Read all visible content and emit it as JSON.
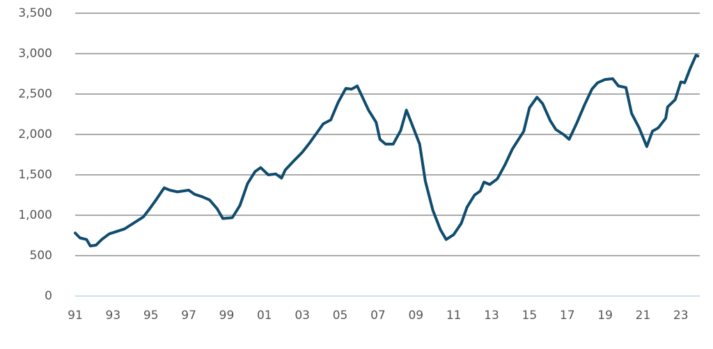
{
  "chart_data": {
    "type": "line",
    "color": "#0f4c6e",
    "grid": true,
    "x": [
      1991.0,
      1991.25,
      1991.6,
      1991.8,
      1992.1,
      1992.4,
      1992.8,
      1993.2,
      1993.6,
      1994.2,
      1994.6,
      1994.9,
      1995.3,
      1995.7,
      1996.0,
      1996.4,
      1997.0,
      1997.3,
      1997.7,
      1998.1,
      1998.5,
      1998.8,
      1999.3,
      1999.7,
      2000.1,
      2000.5,
      2000.8,
      2001.2,
      2001.6,
      2001.9,
      2002.1,
      2002.5,
      2003.0,
      2003.4,
      2003.8,
      2004.1,
      2004.5,
      2004.9,
      2005.3,
      2005.6,
      2005.9,
      2006.2,
      2006.5,
      2006.9,
      2007.1,
      2007.4,
      2007.8,
      2008.2,
      2008.5,
      2008.9,
      2009.2,
      2009.5,
      2009.9,
      2010.3,
      2010.6,
      2011.0,
      2011.4,
      2011.7,
      2012.1,
      2012.4,
      2012.6,
      2012.9,
      2013.3,
      2013.7,
      2014.1,
      2014.4,
      2014.7,
      2015.0,
      2015.4,
      2015.7,
      2016.1,
      2016.4,
      2016.8,
      2017.1,
      2017.5,
      2017.9,
      2018.3,
      2018.6,
      2019.0,
      2019.4,
      2019.7,
      2020.1,
      2020.4,
      2020.8,
      2021.2,
      2021.5,
      2021.8,
      2022.2,
      2022.3,
      2022.7,
      2023.0,
      2023.2,
      2023.5,
      2023.8,
      2023.9
    ],
    "values": [
      780,
      720,
      700,
      620,
      630,
      700,
      770,
      800,
      830,
      920,
      980,
      1070,
      1200,
      1340,
      1310,
      1290,
      1310,
      1260,
      1230,
      1190,
      1080,
      960,
      970,
      1120,
      1390,
      1540,
      1590,
      1500,
      1510,
      1460,
      1560,
      1660,
      1780,
      1900,
      2030,
      2130,
      2180,
      2400,
      2570,
      2560,
      2600,
      2450,
      2300,
      2150,
      1940,
      1880,
      1880,
      2050,
      2300,
      2060,
      1880,
      1420,
      1060,
      820,
      700,
      760,
      900,
      1100,
      1250,
      1300,
      1410,
      1380,
      1450,
      1620,
      1820,
      1930,
      2040,
      2330,
      2460,
      2380,
      2170,
      2060,
      2000,
      1940,
      2140,
      2360,
      2560,
      2640,
      2680,
      2690,
      2600,
      2580,
      2260,
      2080,
      1850,
      2040,
      2080,
      2200,
      2340,
      2430,
      2650,
      2640,
      2820,
      2980,
      2970
    ],
    "xlim": [
      1991,
      2024
    ],
    "xticks": [
      {
        "value": 1991,
        "label": "91"
      },
      {
        "value": 1993,
        "label": "93"
      },
      {
        "value": 1995,
        "label": "95"
      },
      {
        "value": 1997,
        "label": "97"
      },
      {
        "value": 1999,
        "label": "99"
      },
      {
        "value": 2001,
        "label": "01"
      },
      {
        "value": 2003,
        "label": "03"
      },
      {
        "value": 2005,
        "label": "05"
      },
      {
        "value": 2007,
        "label": "07"
      },
      {
        "value": 2009,
        "label": "09"
      },
      {
        "value": 2011,
        "label": "11"
      },
      {
        "value": 2013,
        "label": "13"
      },
      {
        "value": 2015,
        "label": "15"
      },
      {
        "value": 2017,
        "label": "17"
      },
      {
        "value": 2019,
        "label": "19"
      },
      {
        "value": 2021,
        "label": "21"
      },
      {
        "value": 2023,
        "label": "23"
      }
    ],
    "ylim": [
      0,
      3500
    ],
    "yticks": [
      0,
      500,
      {
        "value": 1000,
        "label": "1,000"
      },
      {
        "value": 1500,
        "label": "1,500"
      },
      {
        "value": 2000,
        "label": "2,000"
      },
      {
        "value": 2500,
        "label": "2,500"
      },
      {
        "value": 3000,
        "label": "3,000"
      },
      {
        "value": 3500,
        "label": "3,500"
      }
    ]
  }
}
